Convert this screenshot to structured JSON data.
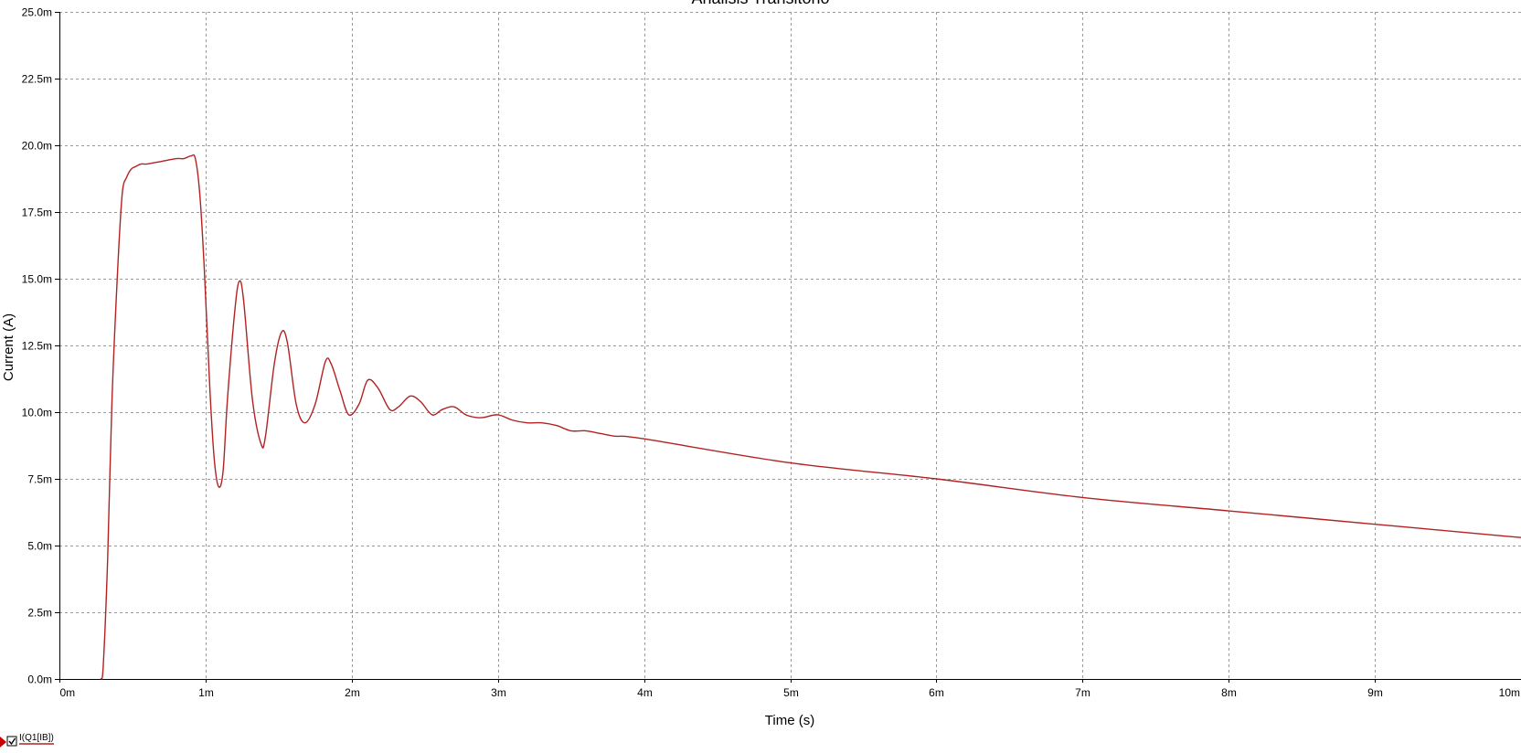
{
  "chart_data": {
    "type": "line",
    "title": "Análisis Transitorio",
    "xlabel": "Time (s)",
    "ylabel": "Current (A)",
    "xlim": [
      0,
      0.01
    ],
    "ylim": [
      0,
      0.025
    ],
    "grid": true,
    "legend_placement": "bottom-left",
    "x_ticks": [
      {
        "value": 0,
        "label": "0m"
      },
      {
        "value": 0.001,
        "label": "1m"
      },
      {
        "value": 0.002,
        "label": "2m"
      },
      {
        "value": 0.003,
        "label": "3m"
      },
      {
        "value": 0.004,
        "label": "4m"
      },
      {
        "value": 0.005,
        "label": "5m"
      },
      {
        "value": 0.006,
        "label": "6m"
      },
      {
        "value": 0.007,
        "label": "7m"
      },
      {
        "value": 0.008,
        "label": "8m"
      },
      {
        "value": 0.009,
        "label": "9m"
      },
      {
        "value": 0.01,
        "label": "10m"
      }
    ],
    "y_ticks": [
      {
        "value": 0,
        "label": "0.0m"
      },
      {
        "value": 0.0025,
        "label": "2.5m"
      },
      {
        "value": 0.005,
        "label": "5.0m"
      },
      {
        "value": 0.0075,
        "label": "7.5m"
      },
      {
        "value": 0.01,
        "label": "10.0m"
      },
      {
        "value": 0.0125,
        "label": "12.5m"
      },
      {
        "value": 0.015,
        "label": "15.0m"
      },
      {
        "value": 0.0175,
        "label": "17.5m"
      },
      {
        "value": 0.02,
        "label": "20.0m"
      },
      {
        "value": 0.0225,
        "label": "22.5m"
      },
      {
        "value": 0.025,
        "label": "25.0m"
      }
    ],
    "series": [
      {
        "name": "I(Q1[IB])",
        "color": "#b22222",
        "x": [
          0.000285,
          0.0003,
          0.00033,
          0.00036,
          0.0004,
          0.00043,
          0.00046,
          0.00049,
          0.00052,
          0.00056,
          0.0006,
          0.0007,
          0.0008,
          0.00085,
          0.0009,
          0.00093,
          0.00096,
          0.00099,
          0.00103,
          0.00106,
          0.00109,
          0.00112,
          0.00115,
          0.0012,
          0.00123,
          0.00126,
          0.00132,
          0.00138,
          0.00141,
          0.00147,
          0.00152,
          0.00156,
          0.00162,
          0.00168,
          0.00175,
          0.00182,
          0.00186,
          0.00192,
          0.00198,
          0.00205,
          0.00211,
          0.00218,
          0.00226,
          0.00232,
          0.0024,
          0.00247,
          0.00255,
          0.00262,
          0.0027,
          0.00278,
          0.00285,
          0.0029,
          0.003,
          0.0031,
          0.0032,
          0.0033,
          0.0034,
          0.0035,
          0.0036,
          0.0037,
          0.0038,
          0.004,
          0.005,
          0.006,
          0.007,
          0.008,
          0.009,
          0.01
        ],
        "values": [
          0.0,
          0.0005,
          0.0045,
          0.0105,
          0.0155,
          0.0182,
          0.0188,
          0.0191,
          0.0192,
          0.0193,
          0.0193,
          0.0194,
          0.0195,
          0.0195,
          0.0196,
          0.0195,
          0.0182,
          0.0155,
          0.0108,
          0.0082,
          0.0072,
          0.0078,
          0.0105,
          0.0138,
          0.0149,
          0.0142,
          0.0105,
          0.0088,
          0.0091,
          0.0118,
          0.013,
          0.0126,
          0.0103,
          0.0096,
          0.0103,
          0.0119,
          0.0118,
          0.0108,
          0.0099,
          0.0103,
          0.0112,
          0.0109,
          0.0101,
          0.0102,
          0.0106,
          0.0104,
          0.0099,
          0.0101,
          0.0102,
          0.0099,
          0.0098,
          0.0098,
          0.0099,
          0.0097,
          0.0096,
          0.0096,
          0.0095,
          0.0093,
          0.0093,
          0.0092,
          0.0091,
          0.009,
          0.0081,
          0.0075,
          0.0068,
          0.0063,
          0.0058,
          0.0053
        ]
      }
    ]
  }
}
